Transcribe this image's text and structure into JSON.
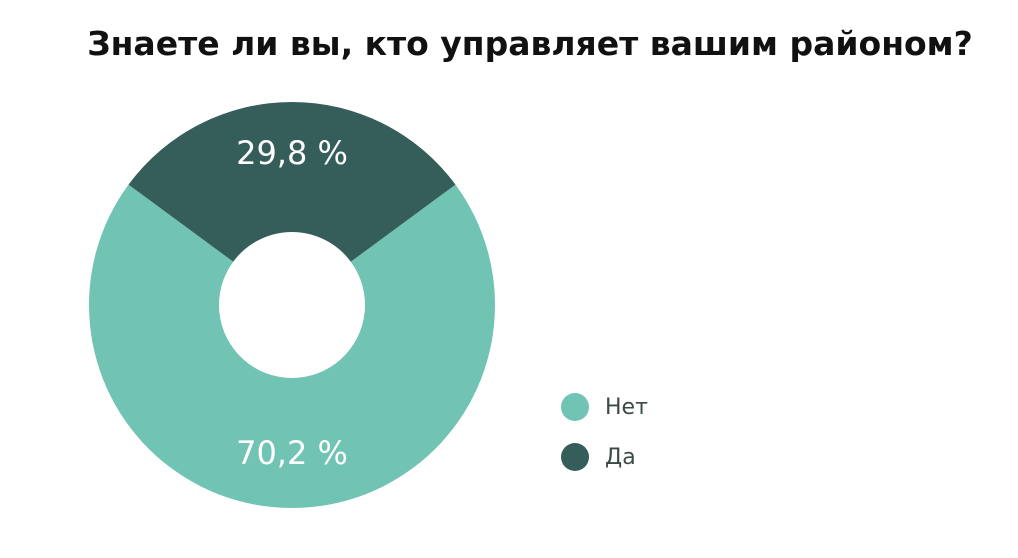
{
  "chart_data": {
    "type": "pie",
    "title": "Знаете ли вы, кто управляет вашим районом?",
    "donut": true,
    "categories": [
      "Нет",
      "Да"
    ],
    "values": [
      70.2,
      29.8
    ],
    "labels": [
      "70,2 %",
      "29,8 %"
    ],
    "colors": [
      "#71c3b4",
      "#355e5a"
    ],
    "legend_position": "right",
    "label_color": "#ffffff"
  }
}
